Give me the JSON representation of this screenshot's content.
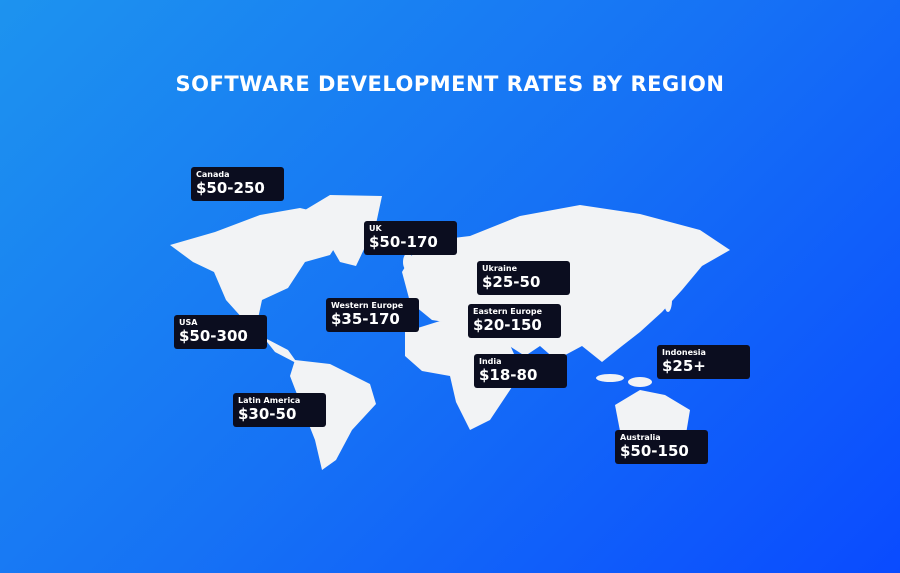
{
  "title": "SOFTWARE DEVELOPMENT RATES BY REGION",
  "labels": [
    {
      "region": "Canada",
      "rate": "$50-250"
    },
    {
      "region": "UK",
      "rate": "$50-170"
    },
    {
      "region": "Ukraine",
      "rate": "$25-50"
    },
    {
      "region": "Western Europe",
      "rate": "$35-170"
    },
    {
      "region": "Eastern Europe",
      "rate": "$20-150"
    },
    {
      "region": "USA",
      "rate": "$50-300"
    },
    {
      "region": "India",
      "rate": "$18-80"
    },
    {
      "region": "Indonesia",
      "rate": "$25+"
    },
    {
      "region": "Latin America",
      "rate": "$30-50"
    },
    {
      "region": "Australia",
      "rate": "$50-150"
    }
  ]
}
